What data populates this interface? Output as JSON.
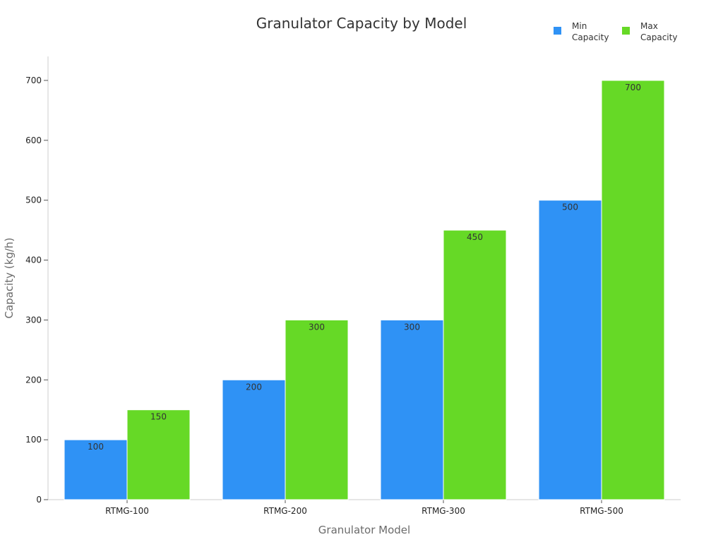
{
  "chart_data": {
    "type": "bar",
    "title": "Granulator Capacity by Model",
    "xlabel": "Granulator Model",
    "ylabel": "Capacity (kg/h)",
    "categories": [
      "RTMG-100",
      "RTMG-200",
      "RTMG-300",
      "RTMG-500"
    ],
    "series": [
      {
        "name": "Min Capacity",
        "legend_lines": [
          "Min",
          "Capacity"
        ],
        "values": [
          100,
          200,
          300,
          500
        ],
        "color": "#2f92f5"
      },
      {
        "name": "Max Capacity",
        "legend_lines": [
          "Max",
          "Capacity"
        ],
        "values": [
          150,
          300,
          450,
          700
        ],
        "color": "#66d926"
      }
    ],
    "ylim": [
      0,
      740
    ],
    "yticks": [
      0,
      100,
      200,
      300,
      400,
      500,
      600,
      700
    ],
    "grid": false,
    "legend_position": "top-right",
    "data_labels": true
  }
}
